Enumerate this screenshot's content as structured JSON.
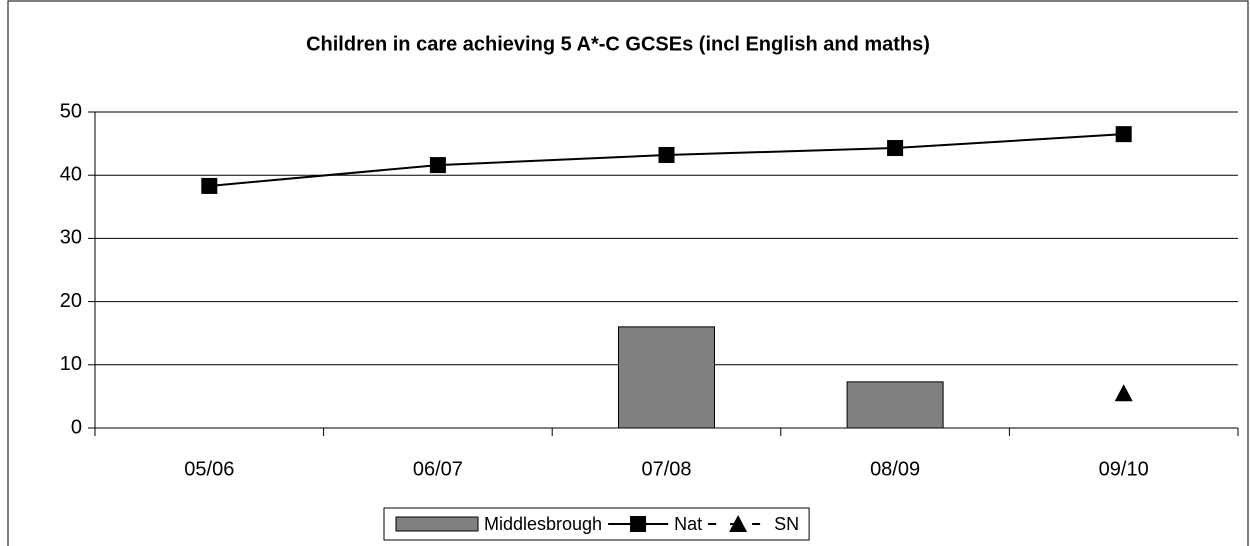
{
  "chart_data": {
    "type": "bar",
    "title": "Children in care achieving 5 A*-C GCSEs (incl English and maths)",
    "categories": [
      "05/06",
      "06/07",
      "07/08",
      "08/09",
      "09/10"
    ],
    "series": [
      {
        "name": "Middlesbrough",
        "type": "bar",
        "color": "#808080",
        "values": [
          null,
          null,
          16,
          7.3,
          null
        ]
      },
      {
        "name": "Nat",
        "type": "line",
        "color": "#000000",
        "marker": "square",
        "dashed": false,
        "values": [
          38.3,
          41.6,
          43.2,
          44.3,
          46.5
        ]
      },
      {
        "name": "SN",
        "type": "line",
        "color": "#000000",
        "marker": "triangle",
        "dashed": true,
        "values": [
          null,
          null,
          null,
          null,
          5.5
        ]
      }
    ],
    "ylim": [
      0,
      50
    ],
    "yticks": [
      0,
      10,
      20,
      30,
      40,
      50
    ],
    "grid": true,
    "legend": "bottom"
  }
}
